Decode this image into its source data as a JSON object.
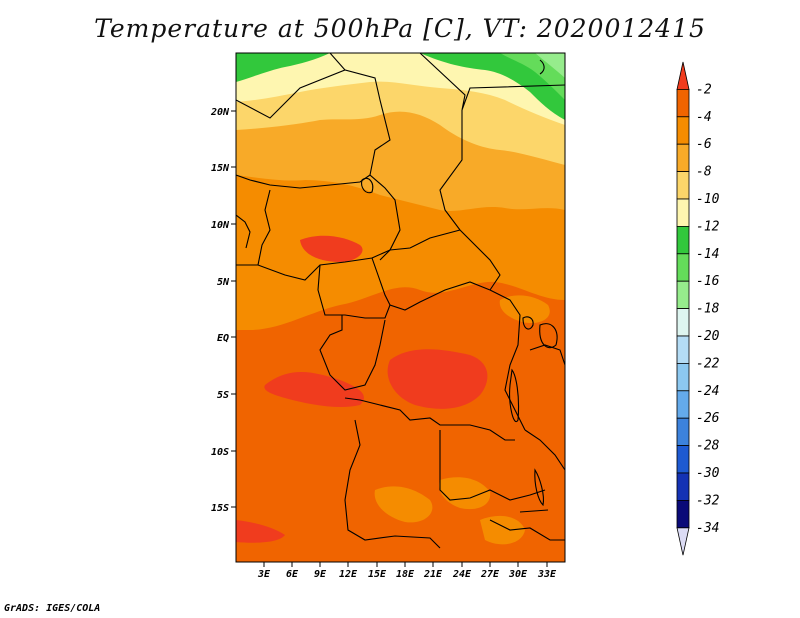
{
  "title": "Temperature at 500hPa [C], VT: 2020012415",
  "credit": "GrADS: IGES/COLA",
  "map": {
    "lon_labels": [
      "3E",
      "6E",
      "9E",
      "12E",
      "15E",
      "18E",
      "21E",
      "24E",
      "27E",
      "30E",
      "33E"
    ],
    "lat_labels": [
      "20N",
      "15N",
      "10N",
      "5N",
      "EQ",
      "5S",
      "10S",
      "15S"
    ],
    "lon_range": [
      0,
      35
    ],
    "lat_range": [
      -20,
      25
    ]
  },
  "colorbar": {
    "labels": [
      "-2",
      "-4",
      "-6",
      "-8",
      "-10",
      "-12",
      "-14",
      "-16",
      "-18",
      "-20",
      "-22",
      "-24",
      "-26",
      "-28",
      "-30",
      "-32",
      "-34"
    ],
    "colors": [
      "#f03c1e",
      "#f06400",
      "#f58c00",
      "#f8aa28",
      "#fcd66a",
      "#fef6b0",
      "#32c83c",
      "#64dc5a",
      "#96ec8c",
      "#def5f0",
      "#b4dcf5",
      "#8cc8f0",
      "#64aaeb",
      "#3c82dc",
      "#1e5ad2",
      "#1432b4",
      "#0a0a78",
      "#dcdcf5"
    ]
  }
}
